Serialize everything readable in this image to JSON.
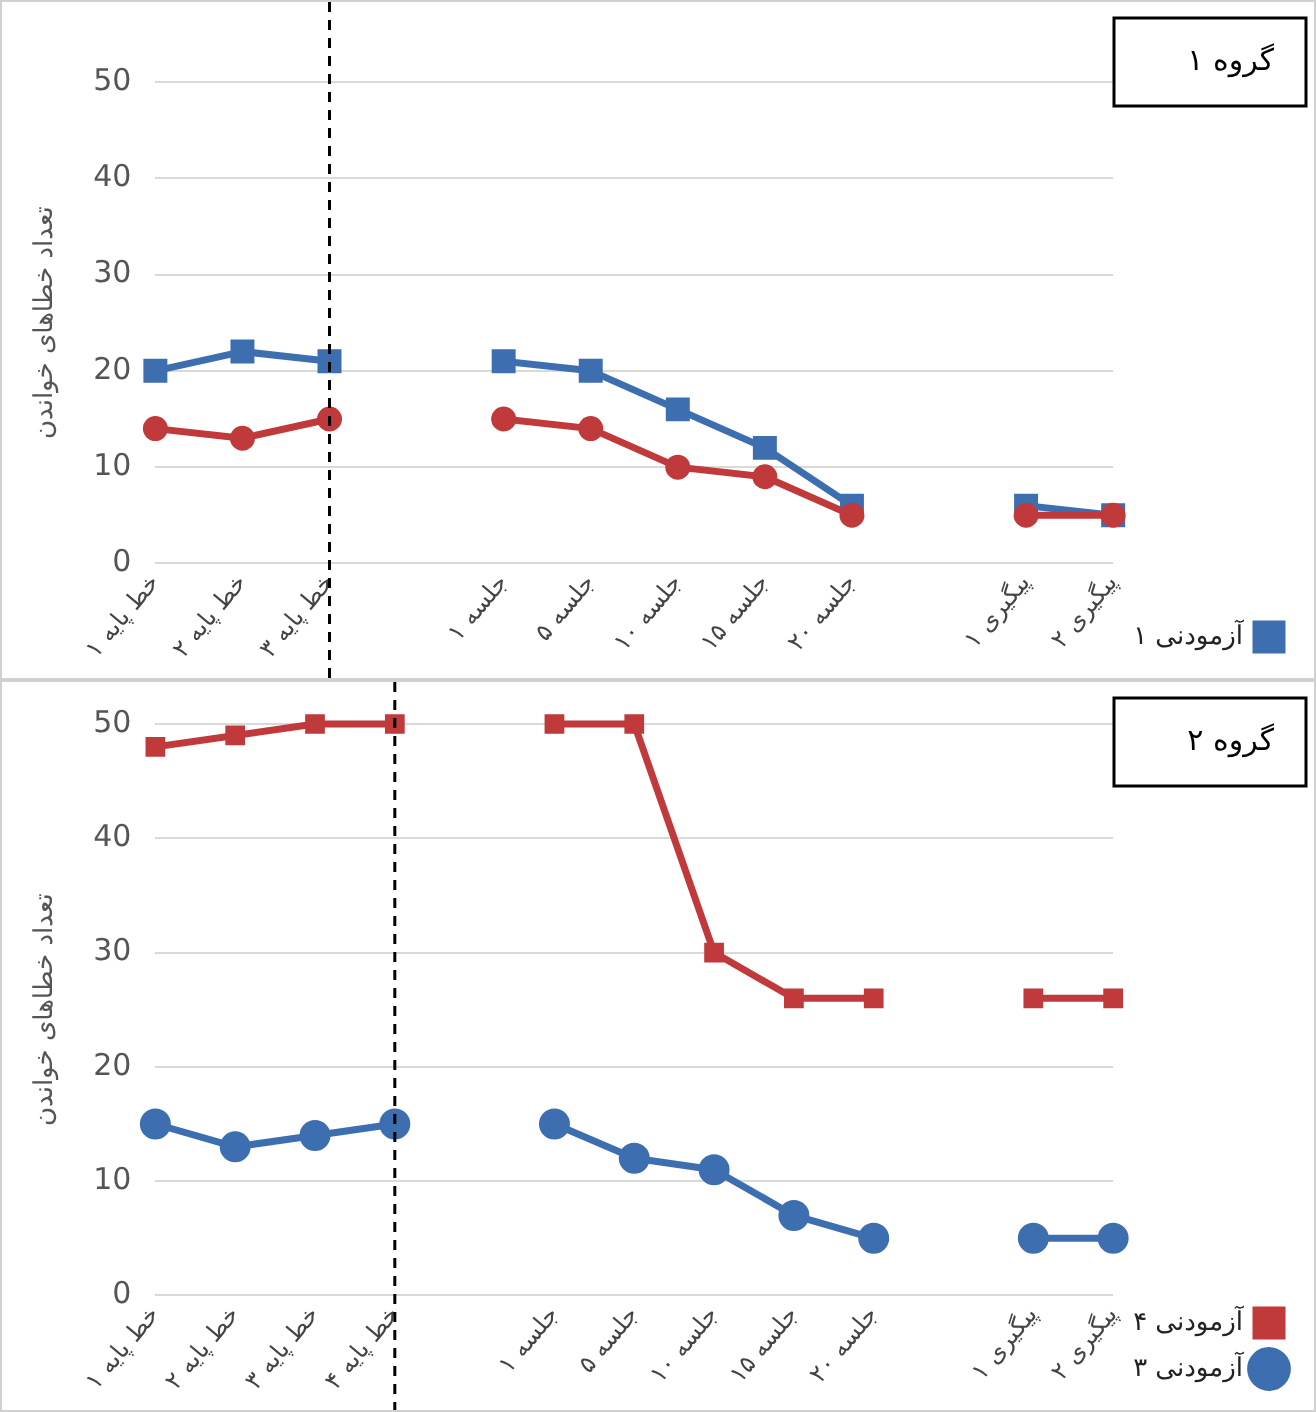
{
  "chart_data": [
    {
      "type": "line",
      "annotations": [
        "گروه ۱"
      ],
      "ylabel": "تعداد خطاهای خواندن",
      "categories": [
        "خط پایه ۱",
        "خط پایه ۲",
        "خط پایه ۳",
        null,
        "جلسه ۱",
        "جلسه ۵",
        "جلسه ۱۰",
        "جلسه ۱۵",
        "جلسه ۲۰",
        null,
        "پیگیری ۱",
        "پیگیری ۲"
      ],
      "series": [
        {
          "name": "آزمودنی ۱",
          "color": "#3d6fb0",
          "marker": "square",
          "values": [
            20,
            22,
            21,
            null,
            21,
            20,
            16,
            12,
            6,
            null,
            6,
            5
          ]
        },
        {
          "color": "#c0393b",
          "marker": "circle",
          "values": [
            14,
            13,
            15,
            null,
            15,
            14,
            10,
            9,
            5,
            null,
            5,
            5
          ]
        }
      ],
      "ylim": [
        0,
        50
      ],
      "yticks": [
        0,
        10,
        20,
        30,
        40,
        50
      ],
      "grid": "y",
      "legend": "bottom right",
      "ref_lines": [
        {
          "axis": "x",
          "value": "خط پایه ۳",
          "color": "#000000",
          "line_style": "dashed"
        }
      ]
    },
    {
      "type": "line",
      "annotations": [
        "گروه ۲"
      ],
      "ylabel": "تعداد خطاهای خواندن",
      "categories": [
        "خط پایه ۱",
        "خط پایه ۲",
        "خط پایه ۳",
        "خط پایه ۴",
        null,
        "جلسه ۱",
        "جلسه ۵",
        "جلسه ۱۰",
        "جلسه ۱۵",
        "جلسه ۲۰",
        null,
        "پیگیری ۱",
        "پیگیری ۲"
      ],
      "series": [
        {
          "name": "آزمودنی ۳",
          "color": "#3d6fb0",
          "marker": "circle",
          "values": [
            15,
            13,
            14,
            15,
            null,
            15,
            12,
            11,
            7,
            5,
            null,
            5,
            5
          ]
        },
        {
          "name": "آزمودنی ۴",
          "color": "#c0393b",
          "marker": "square",
          "values": [
            48,
            49,
            50,
            50,
            null,
            50,
            50,
            30,
            26,
            26,
            null,
            26,
            26
          ]
        }
      ],
      "ylim": [
        0,
        50
      ],
      "yticks": [
        0,
        10,
        20,
        30,
        40,
        50
      ],
      "grid": "y",
      "legend": "bottom right",
      "ref_lines": [
        {
          "axis": "x",
          "value": "خط پایه ۴",
          "color": "#000000",
          "line_style": "dashed"
        }
      ]
    }
  ]
}
